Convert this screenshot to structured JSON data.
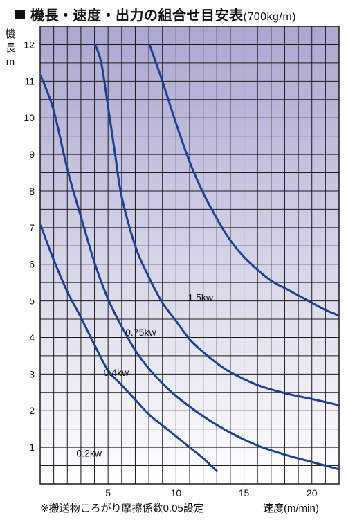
{
  "title": {
    "main": "機長・速度・出力の組合せ目安表",
    "sub": "(700kg/m)"
  },
  "colors": {
    "curve": "#1c3f93",
    "grid": "#1a1a1a",
    "bg_top": "#aaa7cf",
    "bg_bottom": "#ffffff"
  },
  "chart_data": {
    "type": "line",
    "title": "機長・速度・出力の組合せ目安表(700kg/m)",
    "ylabel": [
      "機",
      "長",
      "m"
    ],
    "xlabel": "速度(m/min)",
    "footnote": "※搬送物ころがり摩擦係数0.05設定",
    "xlim": [
      0,
      22
    ],
    "ylim": [
      0,
      12.5
    ],
    "x_ticks": [
      5,
      10,
      15,
      20
    ],
    "y_ticks": [
      1,
      2,
      3,
      4,
      5,
      6,
      7,
      8,
      9,
      10,
      11,
      12
    ],
    "grid": true,
    "series": [
      {
        "name": "0.2kw",
        "label_at": [
          3.6,
          0.75
        ],
        "x": [
          0.05,
          1,
          2,
          3,
          4,
          5,
          6,
          7,
          8,
          9,
          10,
          11,
          12,
          13
        ],
        "y": [
          7.05,
          6.12,
          5.25,
          4.55,
          3.8,
          3.1,
          2.7,
          2.3,
          1.9,
          1.6,
          1.3,
          1.0,
          0.7,
          0.35
        ]
      },
      {
        "name": "0.4kw",
        "label_at": [
          5.6,
          2.95
        ],
        "x": [
          0.05,
          1,
          2,
          3,
          4,
          5,
          6,
          7,
          8,
          9,
          10,
          12,
          14,
          16,
          18,
          20,
          22
        ],
        "y": [
          11.15,
          10.2,
          8.6,
          7.3,
          6.05,
          5.05,
          4.3,
          3.65,
          3.15,
          2.75,
          2.4,
          1.85,
          1.4,
          1.05,
          0.8,
          0.6,
          0.4
        ]
      },
      {
        "name": "0.75kw",
        "label_at": [
          7.4,
          4.05
        ],
        "x": [
          4.05,
          4.5,
          5,
          5.5,
          6,
          7,
          8,
          9,
          10,
          11,
          12,
          13,
          14,
          16,
          18,
          20,
          22
        ],
        "y": [
          12.0,
          11.5,
          10.3,
          9.05,
          7.85,
          6.5,
          5.65,
          4.95,
          4.45,
          3.95,
          3.6,
          3.3,
          3.05,
          2.7,
          2.48,
          2.32,
          2.15
        ]
      },
      {
        "name": "1.5kw",
        "label_at": [
          11.8,
          5.0
        ],
        "x": [
          8.05,
          9,
          10,
          11,
          12,
          13,
          14,
          15,
          16,
          17,
          18,
          19,
          20,
          21,
          22
        ],
        "y": [
          12.0,
          11.0,
          9.85,
          8.8,
          7.95,
          7.25,
          6.65,
          6.2,
          5.85,
          5.55,
          5.35,
          5.15,
          4.95,
          4.75,
          4.6
        ]
      }
    ]
  }
}
